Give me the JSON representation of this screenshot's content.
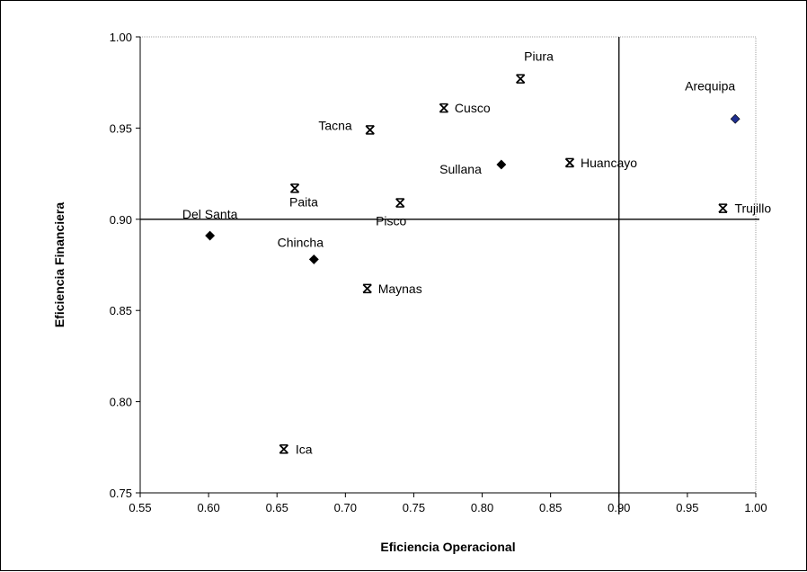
{
  "chart_data": {
    "type": "scatter",
    "xlabel": "Eficiencia Operacional",
    "ylabel": "Eficiencia Financiera",
    "xlim": [
      0.55,
      1.0
    ],
    "ylim": [
      0.75,
      1.0
    ],
    "x_ticks": [
      "0.55",
      "0.60",
      "0.65",
      "0.70",
      "0.75",
      "0.80",
      "0.85",
      "0.90",
      "0.95",
      "1.00"
    ],
    "y_ticks": [
      "0.75",
      "0.80",
      "0.85",
      "0.90",
      "0.95",
      "1.00"
    ],
    "grid": false,
    "reference_lines": {
      "x": 0.9,
      "y": 0.9
    },
    "marker_colors": {
      "diamond": "#000000",
      "star": "#000000",
      "highlight": "#1f2f8f"
    },
    "points": [
      {
        "label": "Piura",
        "x": 0.828,
        "y": 0.977,
        "marker": "star"
      },
      {
        "label": "Cusco",
        "x": 0.772,
        "y": 0.961,
        "marker": "star"
      },
      {
        "label": "Tacna",
        "x": 0.718,
        "y": 0.949,
        "marker": "star"
      },
      {
        "label": "Arequipa",
        "x": 0.985,
        "y": 0.955,
        "marker": "diamond-blue"
      },
      {
        "label": "Sullana",
        "x": 0.814,
        "y": 0.93,
        "marker": "diamond"
      },
      {
        "label": "Huancayo",
        "x": 0.864,
        "y": 0.931,
        "marker": "star"
      },
      {
        "label": "Paita",
        "x": 0.663,
        "y": 0.917,
        "marker": "star"
      },
      {
        "label": "Pisco",
        "x": 0.74,
        "y": 0.909,
        "marker": "star"
      },
      {
        "label": "Trujillo",
        "x": 0.976,
        "y": 0.906,
        "marker": "star"
      },
      {
        "label": "Del Santa",
        "x": 0.601,
        "y": 0.891,
        "marker": "diamond"
      },
      {
        "label": "Chincha",
        "x": 0.677,
        "y": 0.878,
        "marker": "diamond"
      },
      {
        "label": "Maynas",
        "x": 0.716,
        "y": 0.862,
        "marker": "star"
      },
      {
        "label": "Ica",
        "x": 0.655,
        "y": 0.774,
        "marker": "star"
      }
    ]
  }
}
